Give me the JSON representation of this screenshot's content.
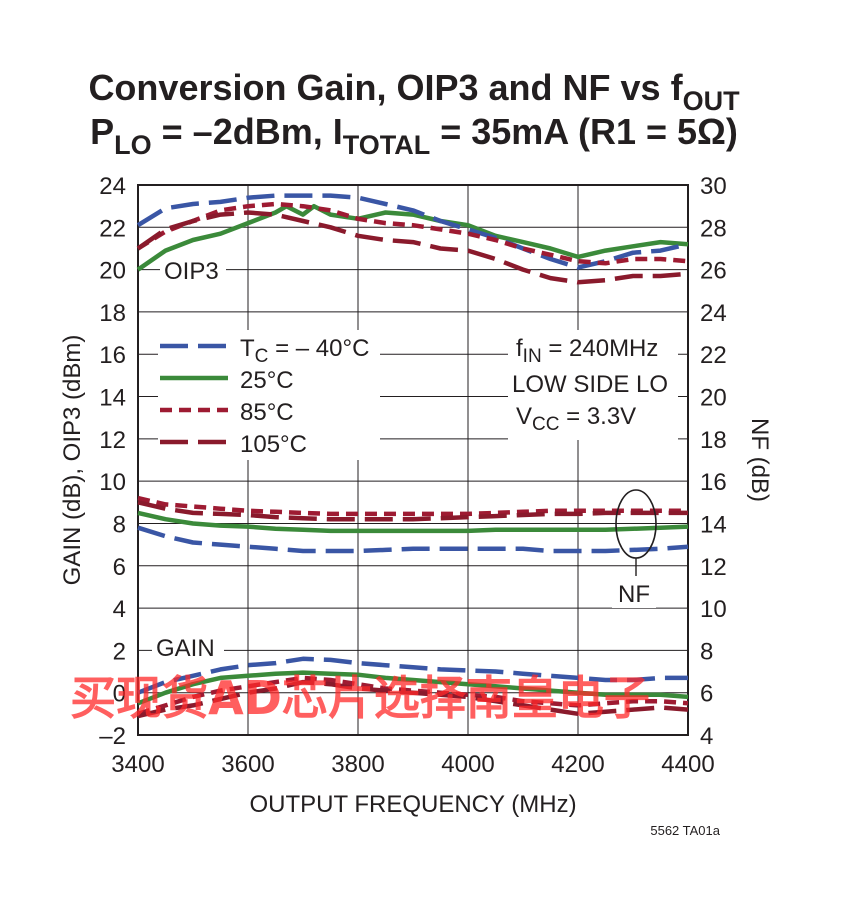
{
  "chart_data": {
    "type": "line",
    "title_line1": {
      "main": "Conversion Gain, OIP3 and NF vs f",
      "sub": "OUT"
    },
    "title_line2": {
      "p": "P",
      "p_sub": "LO",
      "mid": " = –2dBm, I",
      "i_sub": "TOTAL",
      "end": " = 35mA (R1 = 5Ω)"
    },
    "xlabel": "OUTPUT FREQUENCY (MHz)",
    "ylabel_left": "GAIN (dB), OIP3 (dBm)",
    "ylabel_right": "NF (dB)",
    "xlim": [
      3400,
      4400
    ],
    "ylim_left": [
      -2,
      24
    ],
    "ylim_right": [
      4,
      30
    ],
    "x_ticks": [
      3400,
      3600,
      3800,
      4000,
      4200,
      4400
    ],
    "y_ticks_left": [
      -2,
      0,
      2,
      4,
      6,
      8,
      10,
      12,
      14,
      16,
      18,
      20,
      22,
      24
    ],
    "y_ticks_left_labels": [
      "–2",
      "0",
      "2",
      "4",
      "6",
      "8",
      "10",
      "12",
      "14",
      "16",
      "18",
      "20",
      "22",
      "24"
    ],
    "y_ticks_right": [
      4,
      6,
      8,
      10,
      12,
      14,
      16,
      18,
      20,
      22,
      24,
      26,
      28,
      30
    ],
    "grid": true,
    "legend": [
      {
        "series_key": "m40",
        "label_prefix": "T",
        "label_sub": "C",
        "label_rest": " = – 40°C"
      },
      {
        "series_key": "p25",
        "label": "25°C"
      },
      {
        "series_key": "p85",
        "label": "85°C"
      },
      {
        "series_key": "p105",
        "label": "105°C"
      }
    ],
    "series_styles": {
      "m40": {
        "color": "#3a56a5",
        "dash": "long"
      },
      "p25": {
        "color": "#3b8a3a",
        "dash": "solid"
      },
      "p85": {
        "color": "#9e1b32",
        "dash": "short"
      },
      "p105": {
        "color": "#8a1a2c",
        "dash": "long"
      }
    },
    "annotations": {
      "oip3": "OIP3",
      "gain": "GAIN",
      "nf": "NF",
      "fin_prefix": "f",
      "fin_sub": "IN",
      "fin_rest": " = 240MHz",
      "lo": "LOW SIDE LO",
      "vcc_prefix": "V",
      "vcc_sub": "CC",
      "vcc_rest": " = 3.3V"
    },
    "groups": {
      "oip3": {
        "axis": "left",
        "series": {
          "m40": {
            "x": [
              3400,
              3450,
              3500,
              3550,
              3600,
              3650,
              3700,
              3750,
              3800,
              3850,
              3900,
              3950,
              4000,
              4050,
              4100,
              4150,
              4200,
              4250,
              4300,
              4350,
              4400
            ],
            "y": [
              22.1,
              22.9,
              23.1,
              23.2,
              23.4,
              23.5,
              23.5,
              23.5,
              23.4,
              23.1,
              22.8,
              22.3,
              21.9,
              21.5,
              21.0,
              20.5,
              20.1,
              20.4,
              20.8,
              20.9,
              21.2
            ]
          },
          "p25": {
            "x": [
              3400,
              3450,
              3500,
              3550,
              3600,
              3650,
              3670,
              3700,
              3720,
              3750,
              3800,
              3850,
              3900,
              3950,
              4000,
              4050,
              4100,
              4150,
              4200,
              4250,
              4300,
              4350,
              4400
            ],
            "y": [
              20.0,
              20.9,
              21.4,
              21.7,
              22.2,
              22.7,
              23.0,
              22.6,
              23.0,
              22.6,
              22.4,
              22.7,
              22.6,
              22.3,
              22.1,
              21.6,
              21.3,
              21.0,
              20.6,
              20.9,
              21.1,
              21.3,
              21.2
            ]
          },
          "p85": {
            "x": [
              3400,
              3450,
              3500,
              3550,
              3600,
              3650,
              3700,
              3750,
              3800,
              3850,
              3900,
              3950,
              4000,
              4050,
              4100,
              4150,
              4200,
              4250,
              4300,
              4350,
              4400
            ],
            "y": [
              21.0,
              21.8,
              22.3,
              22.8,
              23.0,
              23.1,
              23.0,
              22.8,
              22.4,
              22.2,
              22.1,
              21.9,
              21.7,
              21.4,
              21.0,
              20.7,
              20.4,
              20.3,
              20.5,
              20.5,
              20.4
            ]
          },
          "p105": {
            "x": [
              3400,
              3450,
              3500,
              3550,
              3600,
              3650,
              3700,
              3750,
              3800,
              3850,
              3900,
              3950,
              4000,
              4050,
              4100,
              4150,
              4200,
              4250,
              4300,
              4350,
              4400
            ],
            "y": [
              21.0,
              21.9,
              22.3,
              22.6,
              22.7,
              22.6,
              22.3,
              22.0,
              21.6,
              21.4,
              21.3,
              21.0,
              20.9,
              20.5,
              20.0,
              19.6,
              19.4,
              19.5,
              19.7,
              19.7,
              19.8
            ]
          }
        }
      },
      "nf": {
        "axis": "right",
        "series": {
          "m40": {
            "x": [
              3400,
              3450,
              3500,
              3550,
              3600,
              3650,
              3700,
              3750,
              3800,
              3850,
              3900,
              3950,
              4000,
              4050,
              4100,
              4150,
              4200,
              4250,
              4300,
              4350,
              4400
            ],
            "y": [
              13.8,
              13.4,
              13.1,
              13.0,
              12.9,
              12.8,
              12.7,
              12.7,
              12.7,
              12.75,
              12.8,
              12.8,
              12.8,
              12.8,
              12.8,
              12.7,
              12.7,
              12.7,
              12.75,
              12.8,
              12.9
            ]
          },
          "p25": {
            "x": [
              3400,
              3450,
              3500,
              3550,
              3600,
              3650,
              3700,
              3750,
              3800,
              3850,
              3900,
              3950,
              4000,
              4050,
              4100,
              4150,
              4200,
              4250,
              4300,
              4350,
              4400
            ],
            "y": [
              14.5,
              14.2,
              14.0,
              13.9,
              13.85,
              13.75,
              13.7,
              13.65,
              13.65,
              13.65,
              13.65,
              13.65,
              13.65,
              13.7,
              13.7,
              13.7,
              13.7,
              13.7,
              13.75,
              13.8,
              13.85
            ]
          },
          "p85": {
            "x": [
              3400,
              3450,
              3500,
              3550,
              3600,
              3650,
              3700,
              3750,
              3800,
              3850,
              3900,
              3950,
              4000,
              4050,
              4100,
              4150,
              4200,
              4250,
              4300,
              4350,
              4400
            ],
            "y": [
              15.2,
              14.9,
              14.8,
              14.7,
              14.6,
              14.55,
              14.5,
              14.45,
              14.45,
              14.45,
              14.45,
              14.45,
              14.45,
              14.5,
              14.55,
              14.6,
              14.6,
              14.6,
              14.6,
              14.6,
              14.6
            ]
          },
          "p105": {
            "x": [
              3400,
              3450,
              3500,
              3550,
              3600,
              3650,
              3700,
              3750,
              3800,
              3850,
              3900,
              3950,
              4000,
              4050,
              4100,
              4150,
              4200,
              4250,
              4300,
              4350,
              4400
            ],
            "y": [
              15.0,
              14.7,
              14.5,
              14.45,
              14.4,
              14.3,
              14.25,
              14.2,
              14.2,
              14.2,
              14.2,
              14.25,
              14.3,
              14.35,
              14.4,
              14.45,
              14.45,
              14.5,
              14.5,
              14.5,
              14.5
            ]
          }
        }
      },
      "gain": {
        "axis": "left",
        "series": {
          "m40": {
            "x": [
              3400,
              3450,
              3500,
              3550,
              3600,
              3650,
              3700,
              3750,
              3800,
              3850,
              3900,
              3950,
              4000,
              4050,
              4100,
              4150,
              4200,
              4250,
              4300,
              4350,
              4400
            ],
            "y": [
              0.0,
              0.5,
              0.8,
              1.1,
              1.3,
              1.4,
              1.6,
              1.55,
              1.4,
              1.3,
              1.2,
              1.1,
              1.05,
              1.0,
              0.9,
              0.8,
              0.7,
              0.6,
              0.6,
              0.7,
              0.7
            ]
          },
          "p25": {
            "x": [
              3400,
              3450,
              3500,
              3550,
              3600,
              3650,
              3700,
              3750,
              3800,
              3850,
              3900,
              3950,
              4000,
              4050,
              4100,
              4150,
              4200,
              4250,
              4300,
              4350,
              4400
            ],
            "y": [
              -0.5,
              0.0,
              0.4,
              0.7,
              0.8,
              0.9,
              0.95,
              0.9,
              0.85,
              0.7,
              0.6,
              0.5,
              0.4,
              0.3,
              0.2,
              0.1,
              0.0,
              -0.1,
              -0.1,
              -0.1,
              -0.2
            ]
          },
          "p85": {
            "x": [
              3400,
              3450,
              3500,
              3550,
              3600,
              3650,
              3700,
              3750,
              3800,
              3850,
              3900,
              3950,
              4000,
              4050,
              4100,
              4150,
              4200,
              4250,
              4300,
              4350,
              4400
            ],
            "y": [
              -1.0,
              -0.6,
              -0.2,
              0.1,
              0.3,
              0.5,
              0.7,
              0.6,
              0.4,
              0.2,
              0.1,
              0.0,
              -0.1,
              -0.2,
              -0.4,
              -0.5,
              -0.6,
              -0.5,
              -0.4,
              -0.4,
              -0.5
            ]
          },
          "p105": {
            "x": [
              3400,
              3450,
              3500,
              3550,
              3600,
              3650,
              3700,
              3750,
              3800,
              3850,
              3900,
              3950,
              4000,
              4050,
              4100,
              4150,
              4200,
              4250,
              4300,
              4350,
              4400
            ],
            "y": [
              -1.1,
              -0.8,
              -0.6,
              -0.3,
              0.0,
              0.2,
              0.5,
              0.4,
              0.2,
              0.1,
              0.0,
              -0.1,
              -0.2,
              -0.4,
              -0.6,
              -0.8,
              -1.0,
              -0.9,
              -0.8,
              -0.7,
              -0.8
            ]
          }
        }
      }
    }
  },
  "figure_id": "5562 TA01a",
  "watermark": "买现货AD芯片选择南皇电子"
}
